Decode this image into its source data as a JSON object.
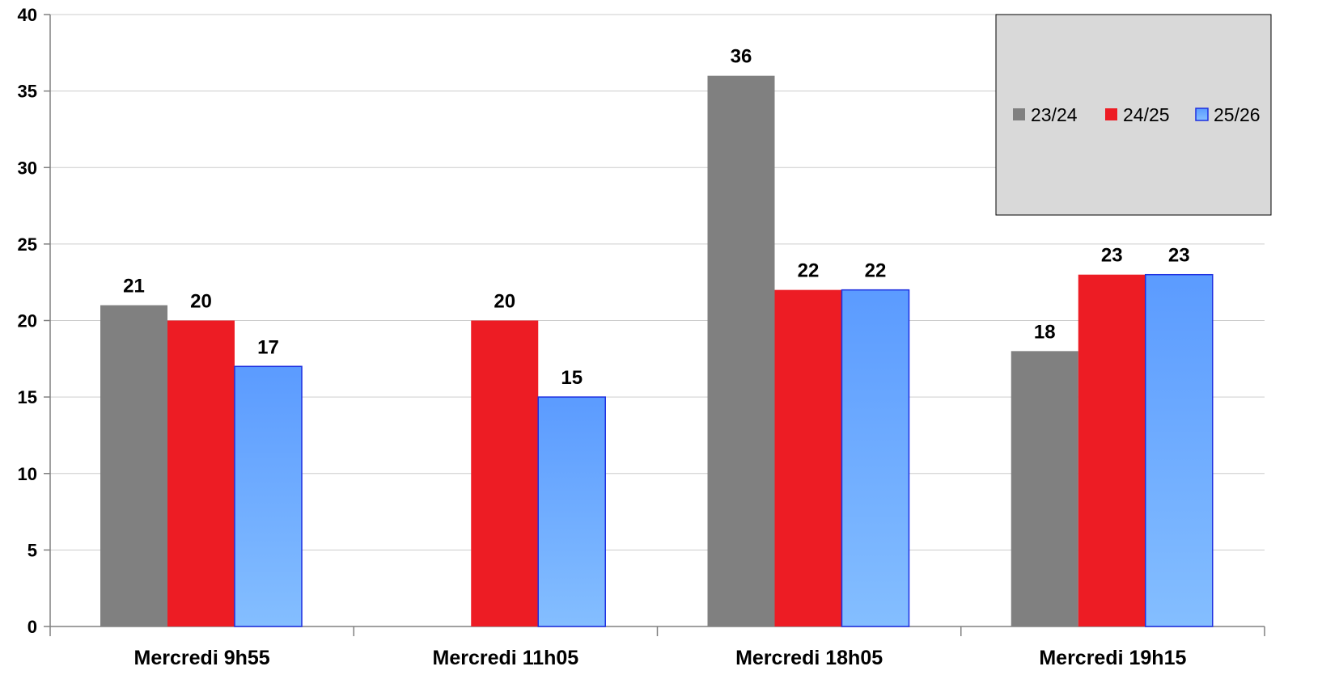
{
  "chart_data": {
    "type": "bar",
    "categories": [
      "Mercredi 9h55",
      "Mercredi 11h05",
      "Mercredi 18h05",
      "Mercredi 19h15"
    ],
    "series": [
      {
        "name": "23/24",
        "values": [
          21,
          null,
          36,
          18
        ]
      },
      {
        "name": "24/25",
        "values": [
          20,
          20,
          22,
          23
        ]
      },
      {
        "name": "25/26",
        "values": [
          17,
          15,
          22,
          23
        ]
      }
    ],
    "ylim": [
      0,
      40
    ],
    "yticks": [
      0,
      5,
      10,
      15,
      20,
      25,
      30,
      35,
      40
    ],
    "grid": true,
    "legend_placement": "top-right",
    "data_labels": true,
    "colors": {
      "23/24": "#808080",
      "24/25": "#ed1c24",
      "25/26_top": "#5b9bff",
      "25/26_bottom": "#84beff",
      "25/26_border": "#1d2fe0",
      "legend_bg": "#d9d9d9",
      "grid": "#cccccc"
    }
  }
}
